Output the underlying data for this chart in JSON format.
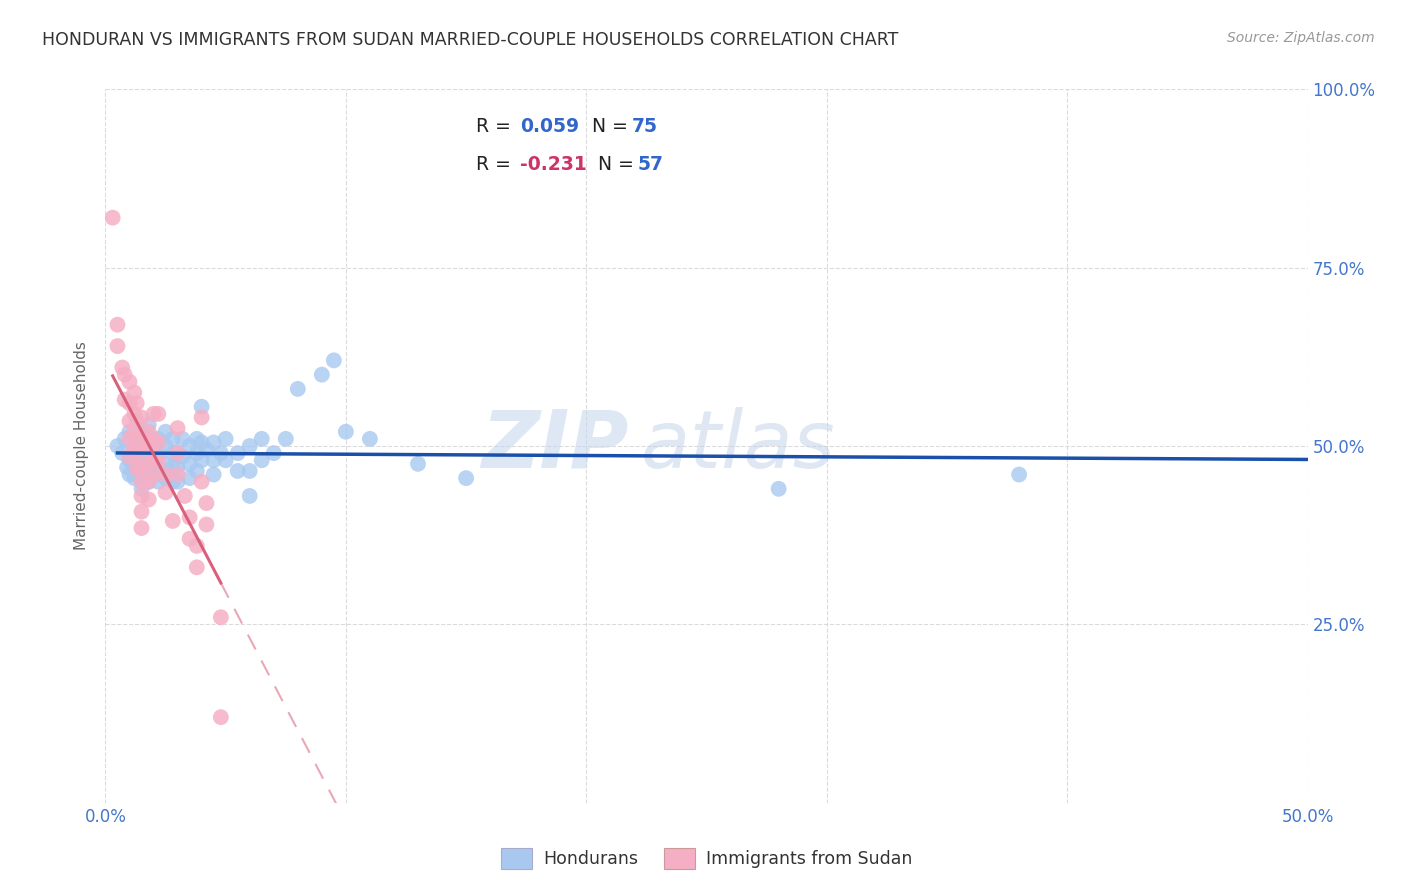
{
  "title": "HONDURAN VS IMMIGRANTS FROM SUDAN MARRIED-COUPLE HOUSEHOLDS CORRELATION CHART",
  "source": "Source: ZipAtlas.com",
  "ylabel": "Married-couple Households",
  "xlim": [
    0.0,
    0.5
  ],
  "ylim": [
    0.0,
    1.0
  ],
  "xtick_vals": [
    0.0,
    0.1,
    0.2,
    0.3,
    0.4,
    0.5
  ],
  "xticklabels": [
    "0.0%",
    "",
    "",
    "",
    "",
    "50.0%"
  ],
  "ytick_vals": [
    0.0,
    0.25,
    0.5,
    0.75,
    1.0
  ],
  "yticklabels_right": [
    "",
    "25.0%",
    "50.0%",
    "75.0%",
    "100.0%"
  ],
  "legend_labels": [
    "Hondurans",
    "Immigrants from Sudan"
  ],
  "blue_color": "#a8c8f0",
  "pink_color": "#f5afc5",
  "blue_line_color": "#1a4faa",
  "pink_line_color": "#d9607a",
  "R_blue": "0.059",
  "N_blue": "75",
  "R_pink": "-0.231",
  "N_pink": "57",
  "watermark_zip": "ZIP",
  "watermark_atlas": "atlas",
  "tick_color": "#4477cc",
  "title_color": "#333333",
  "source_color": "#999999",
  "ylabel_color": "#666666",
  "grid_color": "#cccccc",
  "blue_points": [
    [
      0.005,
      0.5
    ],
    [
      0.007,
      0.49
    ],
    [
      0.008,
      0.51
    ],
    [
      0.009,
      0.47
    ],
    [
      0.01,
      0.52
    ],
    [
      0.01,
      0.48
    ],
    [
      0.01,
      0.46
    ],
    [
      0.012,
      0.5
    ],
    [
      0.012,
      0.475
    ],
    [
      0.012,
      0.455
    ],
    [
      0.013,
      0.51
    ],
    [
      0.013,
      0.49
    ],
    [
      0.015,
      0.52
    ],
    [
      0.015,
      0.5
    ],
    [
      0.015,
      0.48
    ],
    [
      0.015,
      0.46
    ],
    [
      0.015,
      0.44
    ],
    [
      0.018,
      0.53
    ],
    [
      0.018,
      0.51
    ],
    [
      0.018,
      0.49
    ],
    [
      0.018,
      0.47
    ],
    [
      0.018,
      0.45
    ],
    [
      0.02,
      0.5
    ],
    [
      0.02,
      0.48
    ],
    [
      0.02,
      0.46
    ],
    [
      0.022,
      0.51
    ],
    [
      0.022,
      0.49
    ],
    [
      0.022,
      0.47
    ],
    [
      0.022,
      0.45
    ],
    [
      0.025,
      0.52
    ],
    [
      0.025,
      0.5
    ],
    [
      0.025,
      0.475
    ],
    [
      0.025,
      0.455
    ],
    [
      0.028,
      0.51
    ],
    [
      0.028,
      0.49
    ],
    [
      0.028,
      0.47
    ],
    [
      0.028,
      0.45
    ],
    [
      0.03,
      0.49
    ],
    [
      0.03,
      0.47
    ],
    [
      0.03,
      0.45
    ],
    [
      0.032,
      0.51
    ],
    [
      0.032,
      0.485
    ],
    [
      0.035,
      0.5
    ],
    [
      0.035,
      0.475
    ],
    [
      0.035,
      0.455
    ],
    [
      0.038,
      0.51
    ],
    [
      0.038,
      0.49
    ],
    [
      0.038,
      0.465
    ],
    [
      0.04,
      0.555
    ],
    [
      0.04,
      0.505
    ],
    [
      0.04,
      0.48
    ],
    [
      0.042,
      0.495
    ],
    [
      0.045,
      0.505
    ],
    [
      0.045,
      0.48
    ],
    [
      0.045,
      0.46
    ],
    [
      0.048,
      0.49
    ],
    [
      0.05,
      0.51
    ],
    [
      0.05,
      0.48
    ],
    [
      0.055,
      0.49
    ],
    [
      0.055,
      0.465
    ],
    [
      0.06,
      0.5
    ],
    [
      0.06,
      0.465
    ],
    [
      0.06,
      0.43
    ],
    [
      0.065,
      0.51
    ],
    [
      0.065,
      0.48
    ],
    [
      0.07,
      0.49
    ],
    [
      0.075,
      0.51
    ],
    [
      0.08,
      0.58
    ],
    [
      0.09,
      0.6
    ],
    [
      0.095,
      0.62
    ],
    [
      0.1,
      0.52
    ],
    [
      0.11,
      0.51
    ],
    [
      0.13,
      0.475
    ],
    [
      0.15,
      0.455
    ],
    [
      0.28,
      0.44
    ],
    [
      0.38,
      0.46
    ]
  ],
  "pink_points": [
    [
      0.003,
      0.82
    ],
    [
      0.005,
      0.67
    ],
    [
      0.005,
      0.64
    ],
    [
      0.007,
      0.61
    ],
    [
      0.008,
      0.6
    ],
    [
      0.008,
      0.565
    ],
    [
      0.01,
      0.59
    ],
    [
      0.01,
      0.56
    ],
    [
      0.01,
      0.535
    ],
    [
      0.01,
      0.51
    ],
    [
      0.01,
      0.485
    ],
    [
      0.012,
      0.575
    ],
    [
      0.012,
      0.545
    ],
    [
      0.012,
      0.52
    ],
    [
      0.012,
      0.495
    ],
    [
      0.013,
      0.56
    ],
    [
      0.013,
      0.535
    ],
    [
      0.013,
      0.51
    ],
    [
      0.013,
      0.49
    ],
    [
      0.013,
      0.468
    ],
    [
      0.015,
      0.54
    ],
    [
      0.015,
      0.515
    ],
    [
      0.015,
      0.495
    ],
    [
      0.015,
      0.47
    ],
    [
      0.015,
      0.45
    ],
    [
      0.015,
      0.43
    ],
    [
      0.015,
      0.408
    ],
    [
      0.015,
      0.385
    ],
    [
      0.018,
      0.52
    ],
    [
      0.018,
      0.5
    ],
    [
      0.018,
      0.475
    ],
    [
      0.018,
      0.45
    ],
    [
      0.018,
      0.425
    ],
    [
      0.02,
      0.545
    ],
    [
      0.02,
      0.51
    ],
    [
      0.02,
      0.485
    ],
    [
      0.02,
      0.46
    ],
    [
      0.022,
      0.545
    ],
    [
      0.022,
      0.505
    ],
    [
      0.022,
      0.48
    ],
    [
      0.025,
      0.46
    ],
    [
      0.025,
      0.435
    ],
    [
      0.028,
      0.395
    ],
    [
      0.03,
      0.525
    ],
    [
      0.03,
      0.49
    ],
    [
      0.03,
      0.46
    ],
    [
      0.033,
      0.43
    ],
    [
      0.035,
      0.4
    ],
    [
      0.035,
      0.37
    ],
    [
      0.038,
      0.36
    ],
    [
      0.038,
      0.33
    ],
    [
      0.04,
      0.54
    ],
    [
      0.04,
      0.45
    ],
    [
      0.042,
      0.42
    ],
    [
      0.042,
      0.39
    ],
    [
      0.048,
      0.26
    ],
    [
      0.048,
      0.12
    ]
  ]
}
